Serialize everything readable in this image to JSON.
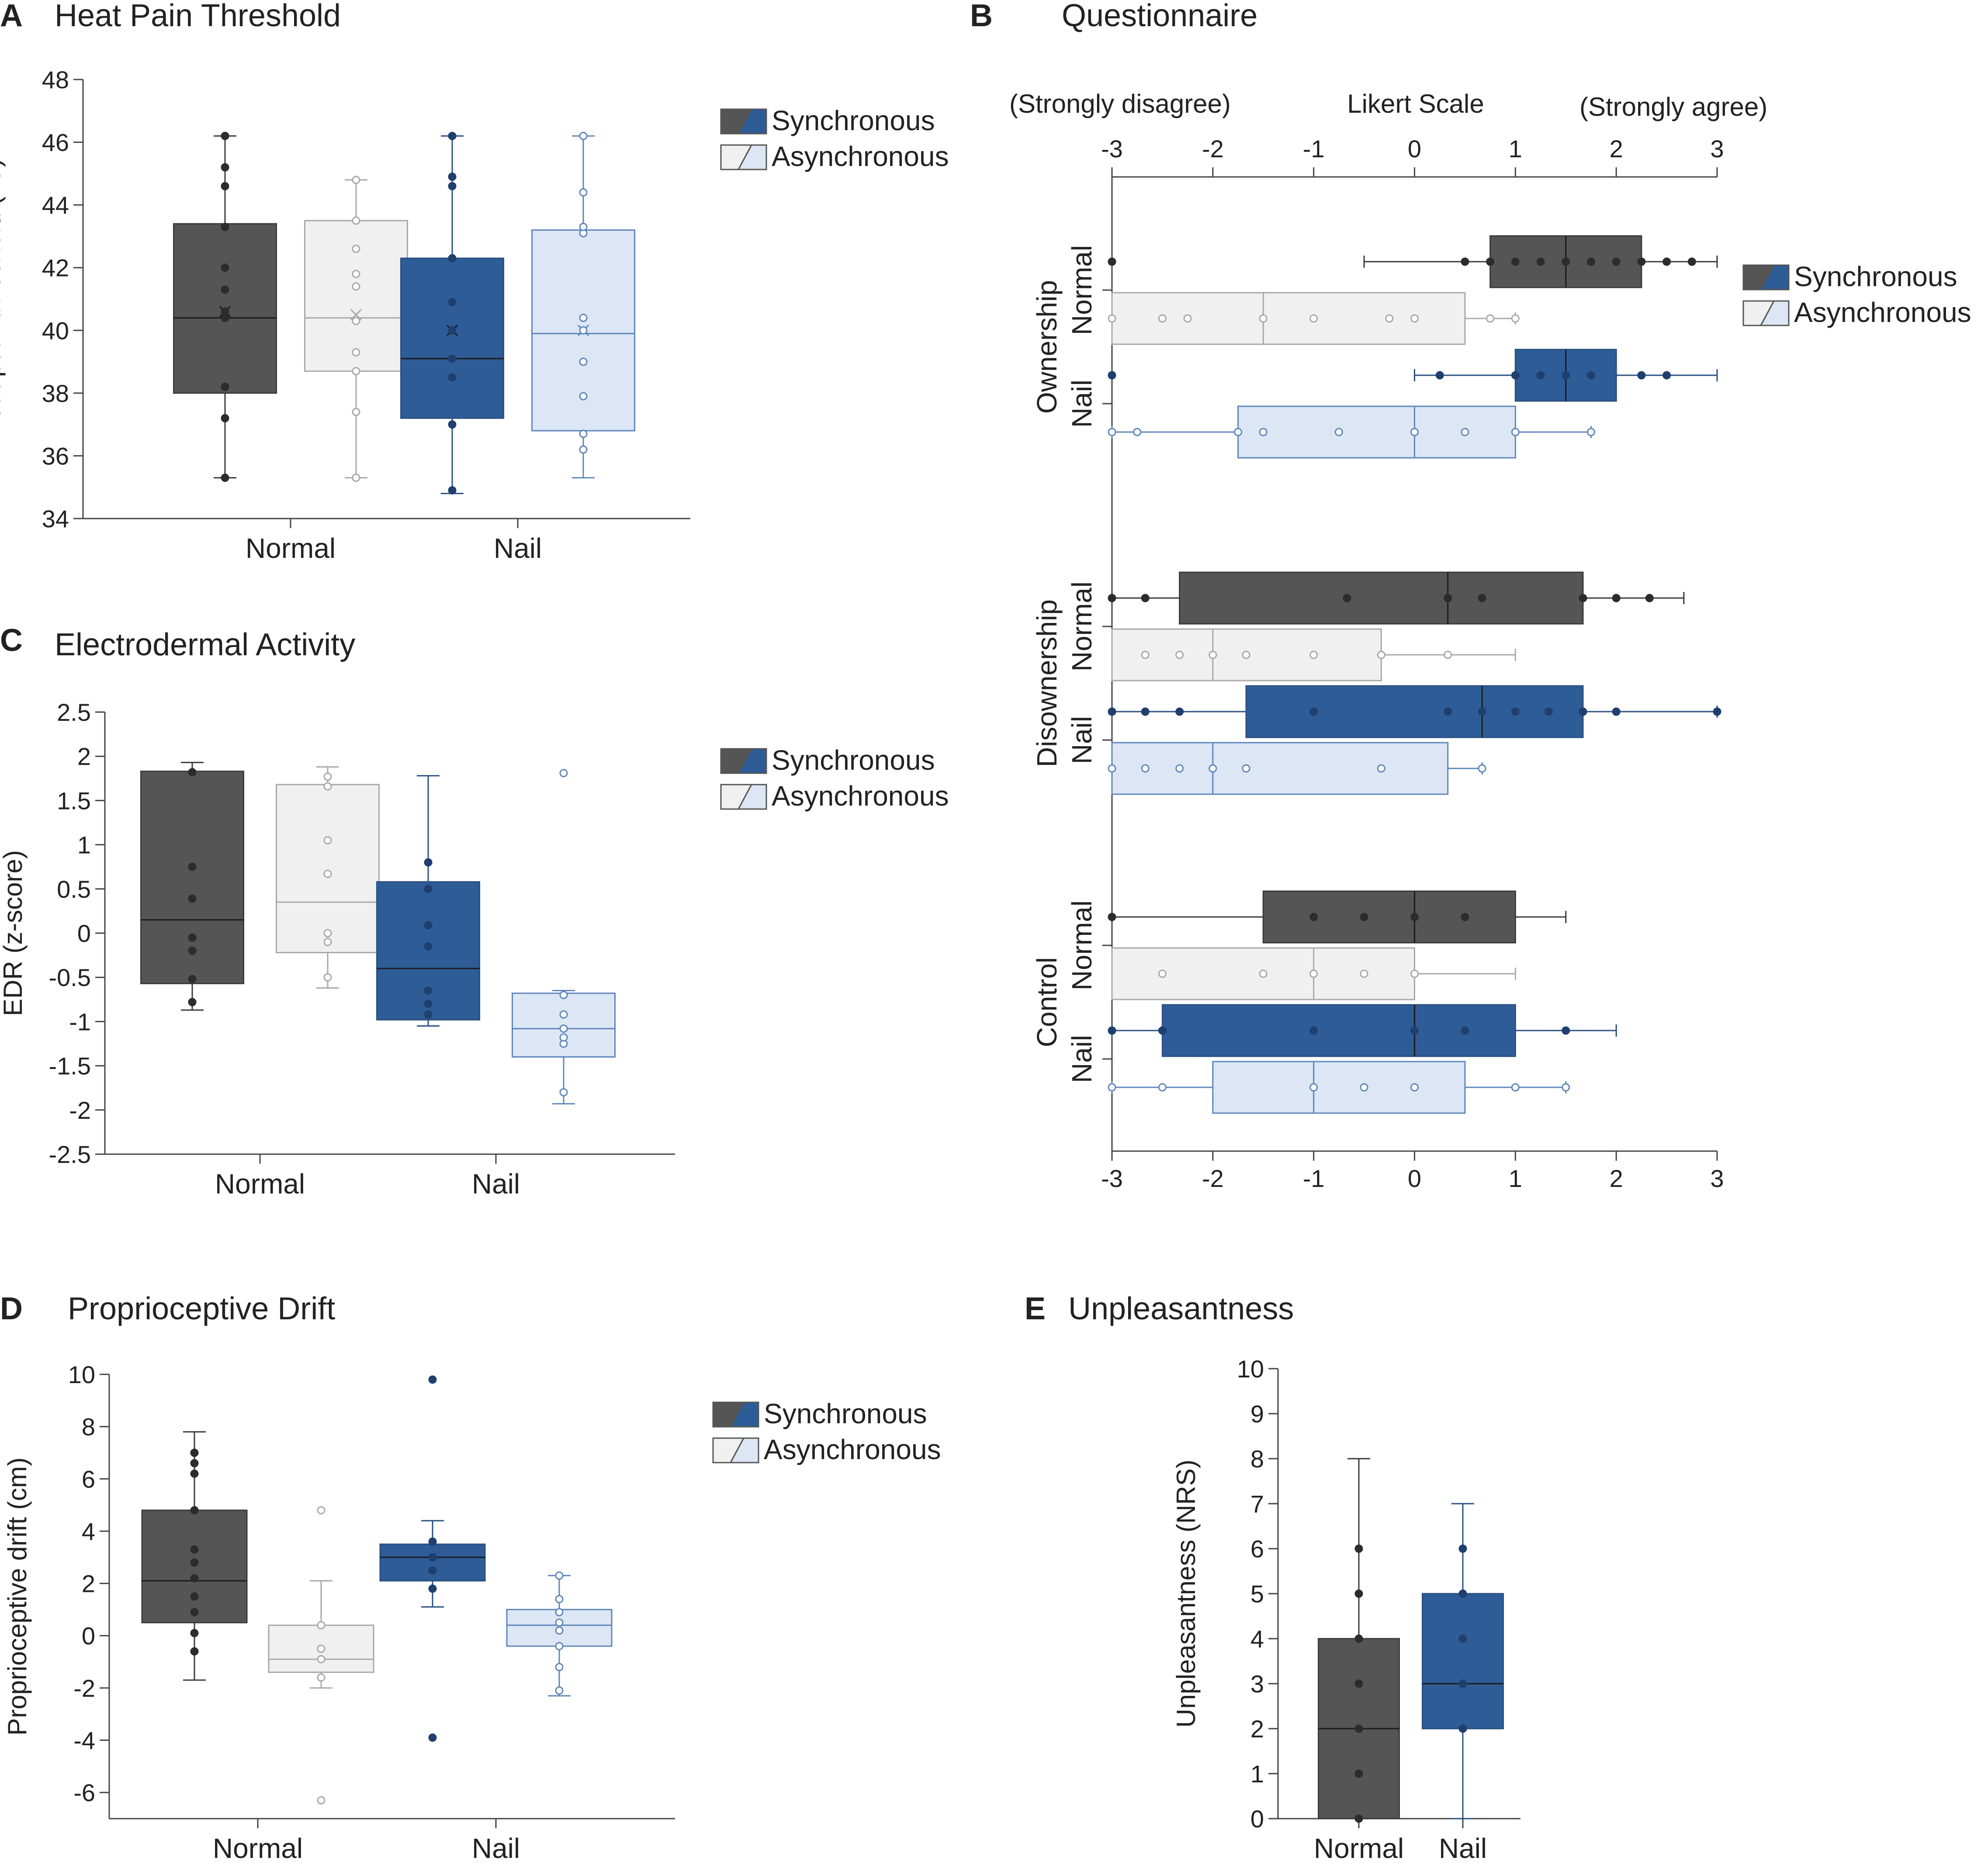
{
  "colors": {
    "sync_normal": "#555555",
    "sync_nail": "#2e5c97",
    "async_normal": "#f0f0f0",
    "async_nail": "#dce6f4",
    "async_normal_stroke": "#a8a8a8",
    "async_nail_stroke": "#5e86bb",
    "axis": "#444444"
  },
  "legend": {
    "sync_label": "Synchronous",
    "async_label": "Asynchronous"
  },
  "chart_data": [
    {
      "panel": "A",
      "title": "Heat Pain Threshold",
      "type": "box",
      "orientation": "vertical",
      "ylabel": "Heat pain threshold (°C)",
      "ylim": [
        34,
        48
      ],
      "yticks": [
        34,
        36,
        38,
        40,
        42,
        44,
        46,
        48
      ],
      "categories": [
        "Normal",
        "Nail"
      ],
      "series_names": [
        "Synchronous",
        "Asynchronous"
      ],
      "boxes": [
        {
          "cat": "Normal",
          "series": "Synchronous",
          "min": 35.3,
          "q1": 38.0,
          "median": 40.4,
          "q3": 43.4,
          "max": 46.2,
          "mean": 40.6,
          "points": [
            35.3,
            37.2,
            38.2,
            40.4,
            40.6,
            41.3,
            42.0,
            43.3,
            44.6,
            45.2,
            46.2
          ]
        },
        {
          "cat": "Normal",
          "series": "Asynchronous",
          "min": 35.3,
          "q1": 38.7,
          "median": 40.4,
          "q3": 43.5,
          "max": 44.8,
          "mean": 40.5,
          "points": [
            35.3,
            37.4,
            38.7,
            39.3,
            40.3,
            41.4,
            41.8,
            42.6,
            43.5,
            44.8
          ]
        },
        {
          "cat": "Nail",
          "series": "Synchronous",
          "min": 34.8,
          "q1": 37.2,
          "median": 39.1,
          "q3": 42.3,
          "max": 46.2,
          "mean": 40.0,
          "points": [
            34.9,
            37.0,
            38.5,
            39.1,
            40.0,
            40.9,
            42.3,
            44.6,
            44.9,
            46.2
          ]
        },
        {
          "cat": "Nail",
          "series": "Asynchronous",
          "min": 35.3,
          "q1": 36.8,
          "median": 39.9,
          "q3": 43.2,
          "max": 46.2,
          "mean": 40.0,
          "points": [
            36.2,
            36.7,
            37.9,
            39.0,
            40.0,
            40.4,
            43.1,
            43.3,
            44.4,
            46.2
          ]
        }
      ]
    },
    {
      "panel": "C",
      "title": "Electrodermal Activity",
      "type": "box",
      "orientation": "vertical",
      "ylabel": "EDR (z-score)",
      "ylim": [
        -2.5,
        2.5
      ],
      "yticks": [
        -2.5,
        -2,
        -1.5,
        -1,
        -0.5,
        0,
        0.5,
        1,
        1.5,
        2,
        2.5
      ],
      "categories": [
        "Normal",
        "Nail"
      ],
      "series_names": [
        "Synchronous",
        "Asynchronous"
      ],
      "boxes": [
        {
          "cat": "Normal",
          "series": "Synchronous",
          "min": -0.87,
          "q1": -0.57,
          "median": 0.15,
          "q3": 1.83,
          "max": 1.93,
          "points": [
            -0.78,
            -0.52,
            -0.2,
            -0.05,
            0.39,
            0.75,
            1.82
          ]
        },
        {
          "cat": "Normal",
          "series": "Asynchronous",
          "min": -0.62,
          "q1": -0.22,
          "median": 0.35,
          "q3": 1.68,
          "max": 1.88,
          "points": [
            -0.5,
            -0.1,
            0.0,
            0.67,
            1.05,
            1.66,
            1.77
          ]
        },
        {
          "cat": "Nail",
          "series": "Synchronous",
          "min": -1.05,
          "q1": -0.98,
          "median": -0.4,
          "q3": 0.58,
          "max": 1.78,
          "points": [
            -0.92,
            -0.8,
            -0.65,
            -0.15,
            0.09,
            0.5,
            0.8
          ]
        },
        {
          "cat": "Nail",
          "series": "Asynchronous",
          "min": -1.93,
          "q1": -1.4,
          "median": -1.08,
          "q3": -0.68,
          "max": -0.65,
          "points": [
            -1.8,
            -1.25,
            -1.18,
            -1.08,
            -0.92,
            -0.7,
            1.81
          ]
        }
      ]
    },
    {
      "panel": "D",
      "title": "Proprioceptive Drift",
      "type": "box",
      "orientation": "vertical",
      "ylabel": "Proprioceptive drift (cm)",
      "ylim": [
        -7,
        10
      ],
      "yticks": [
        -6,
        -4,
        -2,
        0,
        2,
        4,
        6,
        8,
        10
      ],
      "categories": [
        "Normal",
        "Nail"
      ],
      "series_names": [
        "Synchronous",
        "Asynchronous"
      ],
      "boxes": [
        {
          "cat": "Normal",
          "series": "Synchronous",
          "min": -1.7,
          "q1": 0.5,
          "median": 2.1,
          "q3": 4.8,
          "max": 7.8,
          "points": [
            -0.6,
            0.1,
            0.9,
            1.5,
            2.2,
            2.8,
            3.3,
            4.8,
            6.2,
            6.6,
            7.0
          ]
        },
        {
          "cat": "Normal",
          "series": "Asynchronous",
          "min": -2.0,
          "q1": -1.4,
          "median": -0.9,
          "q3": 0.4,
          "max": 2.1,
          "points": [
            -6.3,
            -1.6,
            -0.9,
            -0.5,
            0.4,
            4.8
          ]
        },
        {
          "cat": "Nail",
          "series": "Synchronous",
          "min": 1.1,
          "q1": 2.1,
          "median": 3.0,
          "q3": 3.5,
          "max": 4.4,
          "points": [
            -3.9,
            1.8,
            2.5,
            3.0,
            3.6,
            9.8
          ]
        },
        {
          "cat": "Nail",
          "series": "Asynchronous",
          "min": -2.3,
          "q1": -0.4,
          "median": 0.4,
          "q3": 1.0,
          "max": 2.3,
          "points": [
            -2.1,
            -1.2,
            -0.4,
            0.2,
            0.5,
            0.9,
            1.4,
            2.3
          ]
        }
      ]
    },
    {
      "panel": "E",
      "title": "Unpleasantness",
      "type": "box",
      "orientation": "vertical",
      "ylabel": "Unpleasantness (NRS)",
      "ylim": [
        0,
        10
      ],
      "yticks": [
        0,
        1,
        2,
        3,
        4,
        5,
        6,
        7,
        8,
        9,
        10
      ],
      "categories": [
        "Normal",
        "Nail"
      ],
      "boxes": [
        {
          "cat": "Normal",
          "series": "Synchronous",
          "min": 0,
          "q1": 0,
          "median": 2,
          "q3": 4,
          "max": 8,
          "points": [
            0,
            1,
            2,
            3,
            4,
            5,
            6
          ]
        },
        {
          "cat": "Nail",
          "series": "Synchronous",
          "min": 0,
          "q1": 2,
          "median": 3,
          "q3": 5,
          "max": 7,
          "points": [
            2,
            3,
            4,
            5,
            6
          ]
        }
      ]
    },
    {
      "panel": "B",
      "title": "Questionnaire",
      "type": "box",
      "orientation": "horizontal",
      "xlabel": "Likert Scale",
      "xlabel_left": "(Strongly  disagree)",
      "xlabel_right": "(Strongly  agree)",
      "xlim": [
        -3,
        3
      ],
      "xticks": [
        -3,
        -2,
        -1,
        0,
        1,
        2,
        3
      ],
      "groups": [
        {
          "label": "Ownership",
          "subgroups": [
            {
              "label": "Normal",
              "rows": [
                {
                  "series": "Synchronous",
                  "min": -0.5,
                  "q1": 0.75,
                  "median": 1.5,
                  "q3": 2.25,
                  "max": 3,
                  "points": [
                    -3,
                    0.5,
                    0.75,
                    1,
                    1.25,
                    1.5,
                    1.75,
                    2,
                    2.25,
                    2.5,
                    2.75
                  ]
                },
                {
                  "series": "Asynchronous",
                  "min": -3,
                  "q1": -3,
                  "median": -1.5,
                  "q3": 0.5,
                  "max": 1,
                  "points": [
                    -3,
                    -2.5,
                    -2.25,
                    -1.5,
                    -1,
                    -0.25,
                    0,
                    0.75,
                    1
                  ]
                }
              ]
            },
            {
              "label": "Nail",
              "rows": [
                {
                  "series": "Synchronous",
                  "min": 0,
                  "q1": 1,
                  "median": 1.5,
                  "q3": 2,
                  "max": 3,
                  "points": [
                    -3,
                    0.25,
                    1,
                    1.25,
                    1.5,
                    1.75,
                    2.25,
                    2.5
                  ]
                },
                {
                  "series": "Asynchronous",
                  "min": -3,
                  "q1": -1.75,
                  "median": 0,
                  "q3": 1,
                  "max": 1.75,
                  "points": [
                    -3,
                    -2.75,
                    -1.75,
                    -1.5,
                    -0.75,
                    0,
                    0.5,
                    1,
                    1.75
                  ]
                }
              ]
            }
          ]
        },
        {
          "label": "Disownership",
          "subgroups": [
            {
              "label": "Normal",
              "rows": [
                {
                  "series": "Synchronous",
                  "min": -3,
                  "q1": -2.33,
                  "median": 0.33,
                  "q3": 1.67,
                  "max": 2.67,
                  "points": [
                    -3,
                    -2.67,
                    -0.67,
                    0.33,
                    0.67,
                    1.67,
                    2,
                    2.33
                  ]
                },
                {
                  "series": "Asynchronous",
                  "min": -3,
                  "q1": -3,
                  "median": -2,
                  "q3": -0.33,
                  "max": 1,
                  "points": [
                    -2.67,
                    -2.33,
                    -2,
                    -1.67,
                    -1,
                    -0.33,
                    0.33
                  ]
                }
              ]
            },
            {
              "label": "Nail",
              "rows": [
                {
                  "series": "Synchronous",
                  "min": -3,
                  "q1": -1.67,
                  "median": 0.67,
                  "q3": 1.67,
                  "max": 3,
                  "points": [
                    -3,
                    -2.67,
                    -2.33,
                    -1,
                    0.33,
                    0.67,
                    1,
                    1.33,
                    1.67,
                    2,
                    3
                  ]
                },
                {
                  "series": "Asynchronous",
                  "min": -3,
                  "q1": -3,
                  "median": -2,
                  "q3": 0.33,
                  "max": 0.67,
                  "points": [
                    -3,
                    -2.67,
                    -2.33,
                    -2,
                    -1.67,
                    -0.33,
                    0.67
                  ]
                }
              ]
            }
          ]
        },
        {
          "label": "Control",
          "subgroups": [
            {
              "label": "Normal",
              "rows": [
                {
                  "series": "Synchronous",
                  "min": -3,
                  "q1": -1.5,
                  "median": 0,
                  "q3": 1,
                  "max": 1.5,
                  "points": [
                    -3,
                    -1,
                    -0.5,
                    0,
                    0.5
                  ]
                },
                {
                  "series": "Asynchronous",
                  "min": -3,
                  "q1": -3,
                  "median": -1,
                  "q3": 0,
                  "max": 1,
                  "points": [
                    -2.5,
                    -1.5,
                    -1,
                    -0.5,
                    0
                  ]
                }
              ]
            },
            {
              "label": "Nail",
              "rows": [
                {
                  "series": "Synchronous",
                  "min": -3,
                  "q1": -2.5,
                  "median": 0,
                  "q3": 1,
                  "max": 2,
                  "points": [
                    -3,
                    -2.5,
                    -1,
                    0,
                    0.5,
                    1.5
                  ]
                },
                {
                  "series": "Asynchronous",
                  "min": -3,
                  "q1": -2,
                  "median": -1,
                  "q3": 0.5,
                  "max": 1.5,
                  "points": [
                    -3,
                    -2.5,
                    -1,
                    -0.5,
                    0,
                    1,
                    1.5
                  ]
                }
              ]
            }
          ]
        }
      ]
    }
  ]
}
